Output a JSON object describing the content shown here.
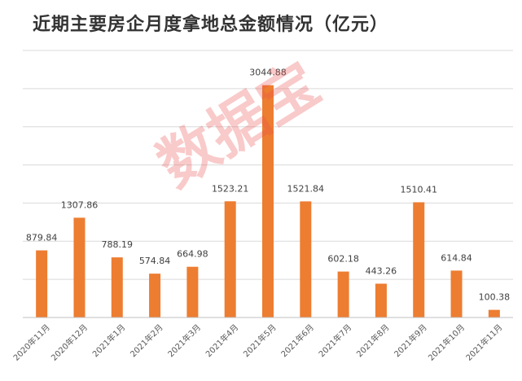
{
  "chart_data": {
    "type": "bar",
    "title": "近期主要房企月度拿地总金额情况（亿元）",
    "categories": [
      "2020年11月",
      "2020年12月",
      "2021年1月",
      "2021年2月",
      "2021年3月",
      "2021年4月",
      "2021年5月",
      "2021年6月",
      "2021年7月",
      "2021年8月",
      "2021年9月",
      "2021年10月",
      "2021年11月"
    ],
    "values": [
      879.84,
      1307.86,
      788.19,
      574.84,
      664.98,
      1523.21,
      3044.88,
      1521.84,
      602.18,
      443.26,
      1510.41,
      614.84,
      100.38
    ],
    "value_labels": [
      "879.84",
      "1307.86",
      "788.19",
      "574.84",
      "664.98",
      "1523.21",
      "3044.88",
      "1521.84",
      "602.18",
      "443.26",
      "1510.41",
      "614.84",
      "100.38"
    ],
    "ylim": [
      0,
      3500
    ],
    "grid": true,
    "bar_color": "#ED7D31",
    "grid_color": "#D9D9D9",
    "axis_color": "#BFBFBF"
  },
  "watermark": "数据宝"
}
